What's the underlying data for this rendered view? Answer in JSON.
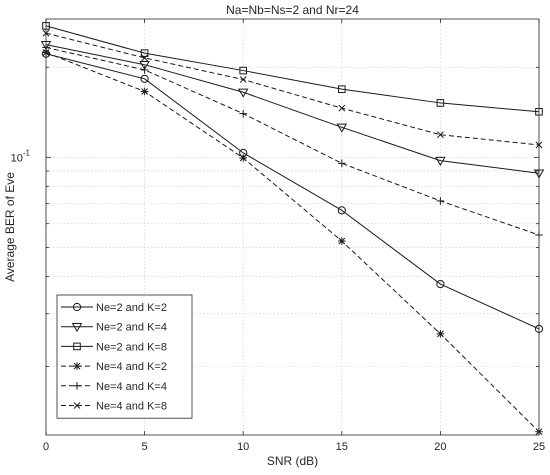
{
  "chart_data": {
    "type": "line",
    "title": "Na=Nb=Ns=2 and Nr=24",
    "xlabel": "SNR (dB)",
    "ylabel": "Average BER of Eve",
    "x": [
      0,
      5,
      10,
      15,
      20,
      25
    ],
    "xlim": [
      0,
      25
    ],
    "ylim": [
      0.0118,
      0.29
    ],
    "yscale": "log",
    "grid": true,
    "legend_position": "bottom-left",
    "x_ticks": [
      {
        "value": 0,
        "label": "0"
      },
      {
        "value": 5,
        "label": "5"
      },
      {
        "value": 10,
        "label": "10"
      },
      {
        "value": 15,
        "label": "15"
      },
      {
        "value": 20,
        "label": "20"
      },
      {
        "value": 25,
        "label": "25"
      }
    ],
    "y_ticks": [
      {
        "value": 0.1,
        "label": "10",
        "exponent": "-1"
      }
    ],
    "series": [
      {
        "name": "Ne=2 and K=2",
        "marker": "circle",
        "dash": "solid",
        "values": [
          0.222,
          0.183,
          0.1035,
          0.0665,
          0.0377,
          0.0267
        ]
      },
      {
        "name": "Ne=2 and K=4",
        "marker": "triangle-down",
        "dash": "solid",
        "values": [
          0.238,
          0.204,
          0.165,
          0.126,
          0.0975,
          0.0885
        ]
      },
      {
        "name": "Ne=2 and K=8",
        "marker": "square",
        "dash": "solid",
        "values": [
          0.275,
          0.223,
          0.195,
          0.169,
          0.152,
          0.142
        ]
      },
      {
        "name": "Ne=4 and K=2",
        "marker": "asterisk",
        "dash": "dashed",
        "values": [
          0.224,
          0.166,
          0.0995,
          0.0525,
          0.0257,
          0.0121
        ]
      },
      {
        "name": "Ne=4 and K=4",
        "marker": "plus",
        "dash": "dashed",
        "values": [
          0.233,
          0.196,
          0.14,
          0.0955,
          0.0715,
          0.055
        ]
      },
      {
        "name": "Ne=4 and K=8",
        "marker": "cross",
        "dash": "dashed",
        "values": [
          0.26,
          0.215,
          0.182,
          0.146,
          0.119,
          0.11
        ]
      }
    ]
  }
}
